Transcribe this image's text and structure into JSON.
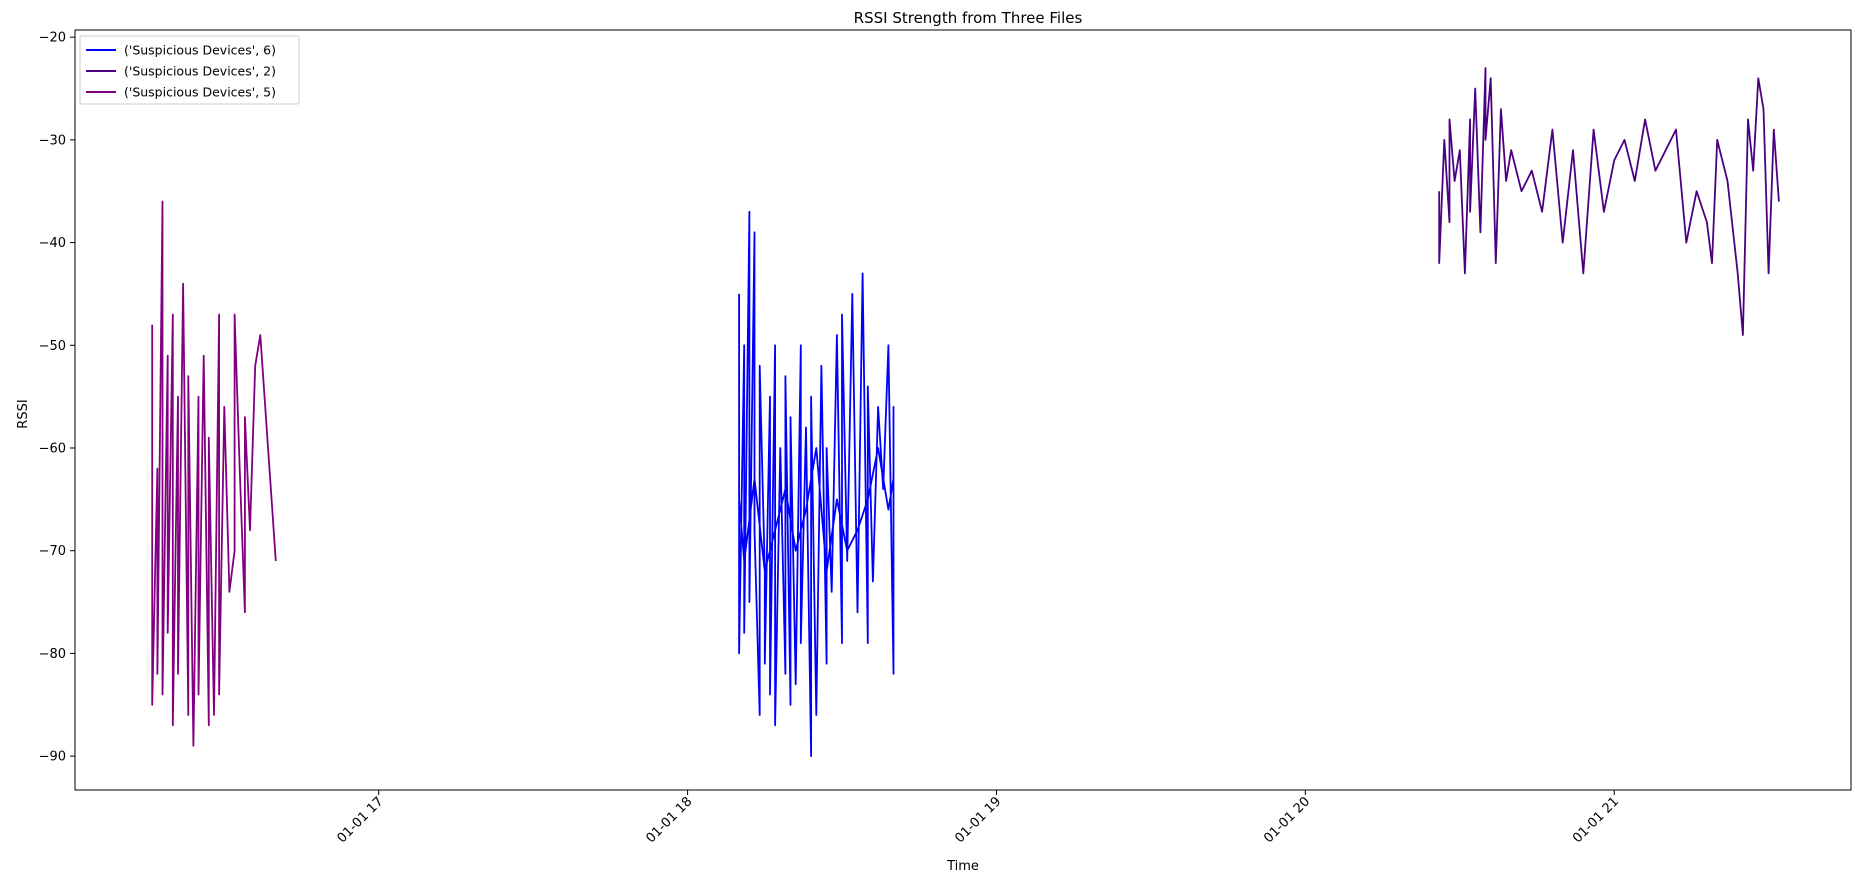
{
  "chart_data": {
    "type": "line",
    "title": "RSSI Strength from Three Files",
    "xlabel": "Time",
    "ylabel": "RSSI",
    "x_range": [
      "01-01 16:01",
      "01-01 21:46"
    ],
    "ylim": [
      -93.3,
      -19.3
    ],
    "x_ticks": [
      {
        "time": "01-01 17:00",
        "label": "01-01 17"
      },
      {
        "time": "01-01 18:00",
        "label": "01-01 18"
      },
      {
        "time": "01-01 19:00",
        "label": "01-01 19"
      },
      {
        "time": "01-01 20:00",
        "label": "01-01 20"
      },
      {
        "time": "01-01 21:00",
        "label": "01-01 21"
      }
    ],
    "y_ticks": [
      -20,
      -30,
      -40,
      -50,
      -60,
      -70,
      -80,
      -90
    ],
    "grid": false,
    "legend": "top-left",
    "series": [
      {
        "name": "('Suspicious Devices', 6)",
        "color": "#0000ff",
        "x": [
          "01-01 18:10",
          "01-01 18:10",
          "01-01 18:11",
          "01-01 18:11",
          "01-01 18:12",
          "01-01 18:12",
          "01-01 18:13",
          "01-01 18:13",
          "01-01 18:14",
          "01-01 18:14",
          "01-01 18:15",
          "01-01 18:15",
          "01-01 18:16",
          "01-01 18:16",
          "01-01 18:17",
          "01-01 18:17",
          "01-01 18:18",
          "01-01 18:19",
          "01-01 18:19",
          "01-01 18:20",
          "01-01 18:20",
          "01-01 18:21",
          "01-01 18:22",
          "01-01 18:22",
          "01-01 18:23",
          "01-01 18:24",
          "01-01 18:24",
          "01-01 18:25",
          "01-01 18:26",
          "01-01 18:27",
          "01-01 18:27",
          "01-01 18:28",
          "01-01 18:29",
          "01-01 18:30",
          "01-01 18:30",
          "01-01 18:31",
          "01-01 18:32",
          "01-01 18:33",
          "01-01 18:34",
          "01-01 18:35",
          "01-01 18:35",
          "01-01 18:36",
          "01-01 18:37",
          "01-01 18:38",
          "01-01 18:39",
          "01-01 18:40",
          "01-01 18:40",
          "01-01 18:40",
          "01-01 18:39",
          "01-01 18:37",
          "01-01 18:35",
          "01-01 18:33",
          "01-01 18:31",
          "01-01 18:29",
          "01-01 18:27",
          "01-01 18:25",
          "01-01 18:23",
          "01-01 18:21",
          "01-01 18:19",
          "01-01 18:17",
          "01-01 18:15",
          "01-01 18:13",
          "01-01 18:12",
          "01-01 18:11",
          "01-01 18:10"
        ],
        "y": [
          -45,
          -80,
          -50,
          -78,
          -37,
          -75,
          -39,
          -68,
          -86,
          -52,
          -72,
          -81,
          -55,
          -84,
          -50,
          -87,
          -60,
          -82,
          -53,
          -85,
          -57,
          -83,
          -50,
          -79,
          -58,
          -90,
          -55,
          -86,
          -52,
          -81,
          -60,
          -74,
          -49,
          -79,
          -47,
          -71,
          -45,
          -76,
          -43,
          -79,
          -54,
          -73,
          -56,
          -64,
          -50,
          -82,
          -56,
          -63,
          -66,
          -60,
          -65,
          -68,
          -70,
          -65,
          -72,
          -60,
          -66,
          -70,
          -64,
          -68,
          -72,
          -63,
          -67,
          -71,
          -65
        ]
      },
      {
        "name": "('Suspicious Devices', 2)",
        "color": "#4b0082",
        "x": [
          "01-01 20:26",
          "01-01 20:26",
          "01-01 20:27",
          "01-01 20:28",
          "01-01 20:28",
          "01-01 20:29",
          "01-01 20:30",
          "01-01 20:31",
          "01-01 20:32",
          "01-01 20:32",
          "01-01 20:33",
          "01-01 20:34",
          "01-01 20:35",
          "01-01 20:35",
          "01-01 20:36",
          "01-01 20:37",
          "01-01 20:38",
          "01-01 20:39",
          "01-01 20:40",
          "01-01 20:42",
          "01-01 20:44",
          "01-01 20:46",
          "01-01 20:48",
          "01-01 20:50",
          "01-01 20:52",
          "01-01 20:54",
          "01-01 20:56",
          "01-01 20:58",
          "01-01 21:00",
          "01-01 21:02",
          "01-01 21:04",
          "01-01 21:06",
          "01-01 21:08",
          "01-01 21:10",
          "01-01 21:12",
          "01-01 21:14",
          "01-01 21:16",
          "01-01 21:18",
          "01-01 21:19",
          "01-01 21:20",
          "01-01 21:22",
          "01-01 21:24",
          "01-01 21:25",
          "01-01 21:26",
          "01-01 21:27",
          "01-01 21:28",
          "01-01 21:29",
          "01-01 21:30",
          "01-01 21:31",
          "01-01 21:32"
        ],
        "y": [
          -35,
          -42,
          -30,
          -38,
          -28,
          -34,
          -31,
          -43,
          -28,
          -37,
          -25,
          -39,
          -23,
          -30,
          -24,
          -42,
          -27,
          -34,
          -31,
          -35,
          -33,
          -37,
          -29,
          -40,
          -31,
          -43,
          -29,
          -37,
          -32,
          -30,
          -34,
          -28,
          -33,
          -31,
          -29,
          -40,
          -35,
          -38,
          -42,
          -30,
          -34,
          -43,
          -49,
          -28,
          -33,
          -24,
          -27,
          -43,
          -29,
          -36
        ]
      },
      {
        "name": "('Suspicious Devices', 5)",
        "color": "#800080",
        "x": [
          "01-01 16:16",
          "01-01 16:16",
          "01-01 16:17",
          "01-01 16:17",
          "01-01 16:18",
          "01-01 16:18",
          "01-01 16:19",
          "01-01 16:19",
          "01-01 16:20",
          "01-01 16:20",
          "01-01 16:21",
          "01-01 16:21",
          "01-01 16:22",
          "01-01 16:23",
          "01-01 16:23",
          "01-01 16:24",
          "01-01 16:25",
          "01-01 16:25",
          "01-01 16:26",
          "01-01 16:27",
          "01-01 16:27",
          "01-01 16:28",
          "01-01 16:29",
          "01-01 16:29",
          "01-01 16:30",
          "01-01 16:31",
          "01-01 16:32",
          "01-01 16:32",
          "01-01 16:33",
          "01-01 16:34",
          "01-01 16:34",
          "01-01 16:35",
          "01-01 16:36",
          "01-01 16:37",
          "01-01 16:40"
        ],
        "y": [
          -48,
          -85,
          -62,
          -82,
          -36,
          -84,
          -51,
          -78,
          -47,
          -87,
          -55,
          -82,
          -44,
          -86,
          -53,
          -89,
          -55,
          -84,
          -51,
          -87,
          -59,
          -86,
          -47,
          -84,
          -56,
          -74,
          -70,
          -47,
          -62,
          -76,
          -57,
          -68,
          -52,
          -49,
          -71
        ]
      }
    ]
  }
}
